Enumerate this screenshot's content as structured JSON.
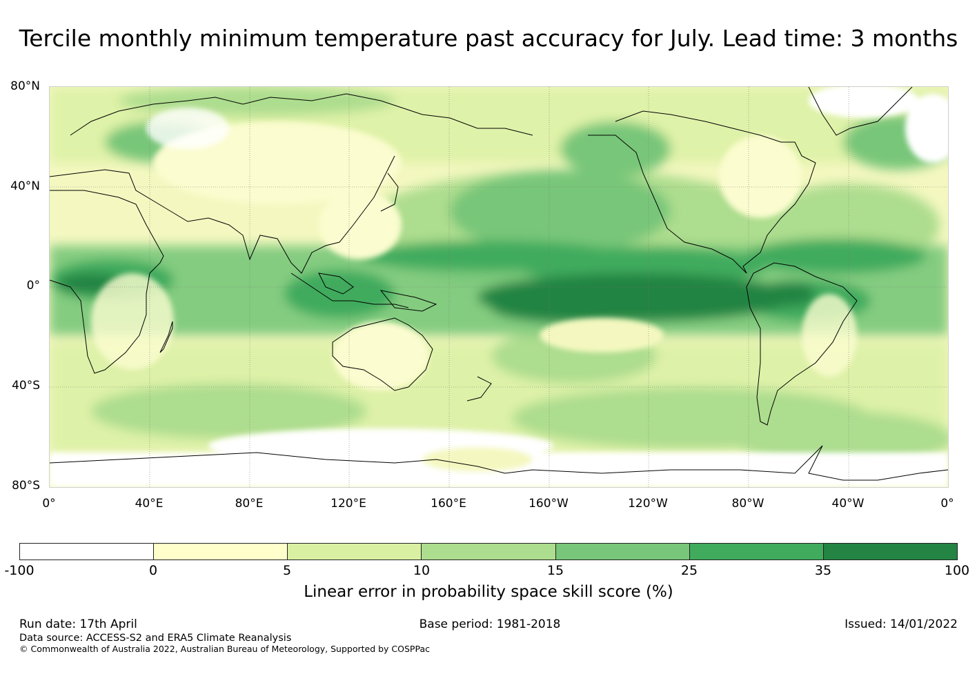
{
  "title": "Tercile monthly minimum temperature past accuracy for July. Lead time: 3 months",
  "map": {
    "lat_labels": [
      "80°N",
      "40°N",
      "0°",
      "40°S",
      "80°S"
    ],
    "lon_labels": [
      "0°",
      "40°E",
      "80°E",
      "120°E",
      "160°E",
      "160°W",
      "120°W",
      "80°W",
      "40°W",
      "0°"
    ],
    "shading": "Linear error in probability space skill score (%) by region",
    "regions": [
      {
        "name": "Equatorial central/east Pacific",
        "class": "35-100"
      },
      {
        "name": "Tropical Pacific band north of equator",
        "class": "25-35"
      },
      {
        "name": "North Pacific",
        "class": "15-25"
      },
      {
        "name": "Equatorial Atlantic / northern South America",
        "class": "25-35"
      },
      {
        "name": "Equatorial Africa and Indian Ocean",
        "class": "15-25"
      },
      {
        "name": "Maritime continent",
        "class": "15-25"
      },
      {
        "name": "Southern Ocean",
        "class": "10-15"
      },
      {
        "name": "Northern Eurasia",
        "class": "0-5"
      },
      {
        "name": "Australia interior",
        "class": "0-5"
      },
      {
        "name": "Antarctica",
        "class": "-100-0"
      },
      {
        "name": "Arctic Greenland",
        "class": "-100-0"
      }
    ]
  },
  "colorbar": {
    "ticks": [
      "-100",
      "0",
      "5",
      "10",
      "15",
      "25",
      "35",
      "100"
    ],
    "colors": [
      "#ffffff",
      "#ffffcc",
      "#d9f0a3",
      "#addd8e",
      "#78c679",
      "#41ab5d",
      "#238443"
    ],
    "label": "Linear error in probability space skill score (%)"
  },
  "footer": {
    "run_date": "Run date: 17th April",
    "base_period": "Base period: 1981-2018",
    "issued": "Issued: 14/01/2022",
    "data_source": "Data source: ACCESS-S2 and ERA5 Climate Reanalysis",
    "copyright": "© Commonwealth of Australia 2022, Australian Bureau of Meteorology, Supported by COSPPac"
  }
}
